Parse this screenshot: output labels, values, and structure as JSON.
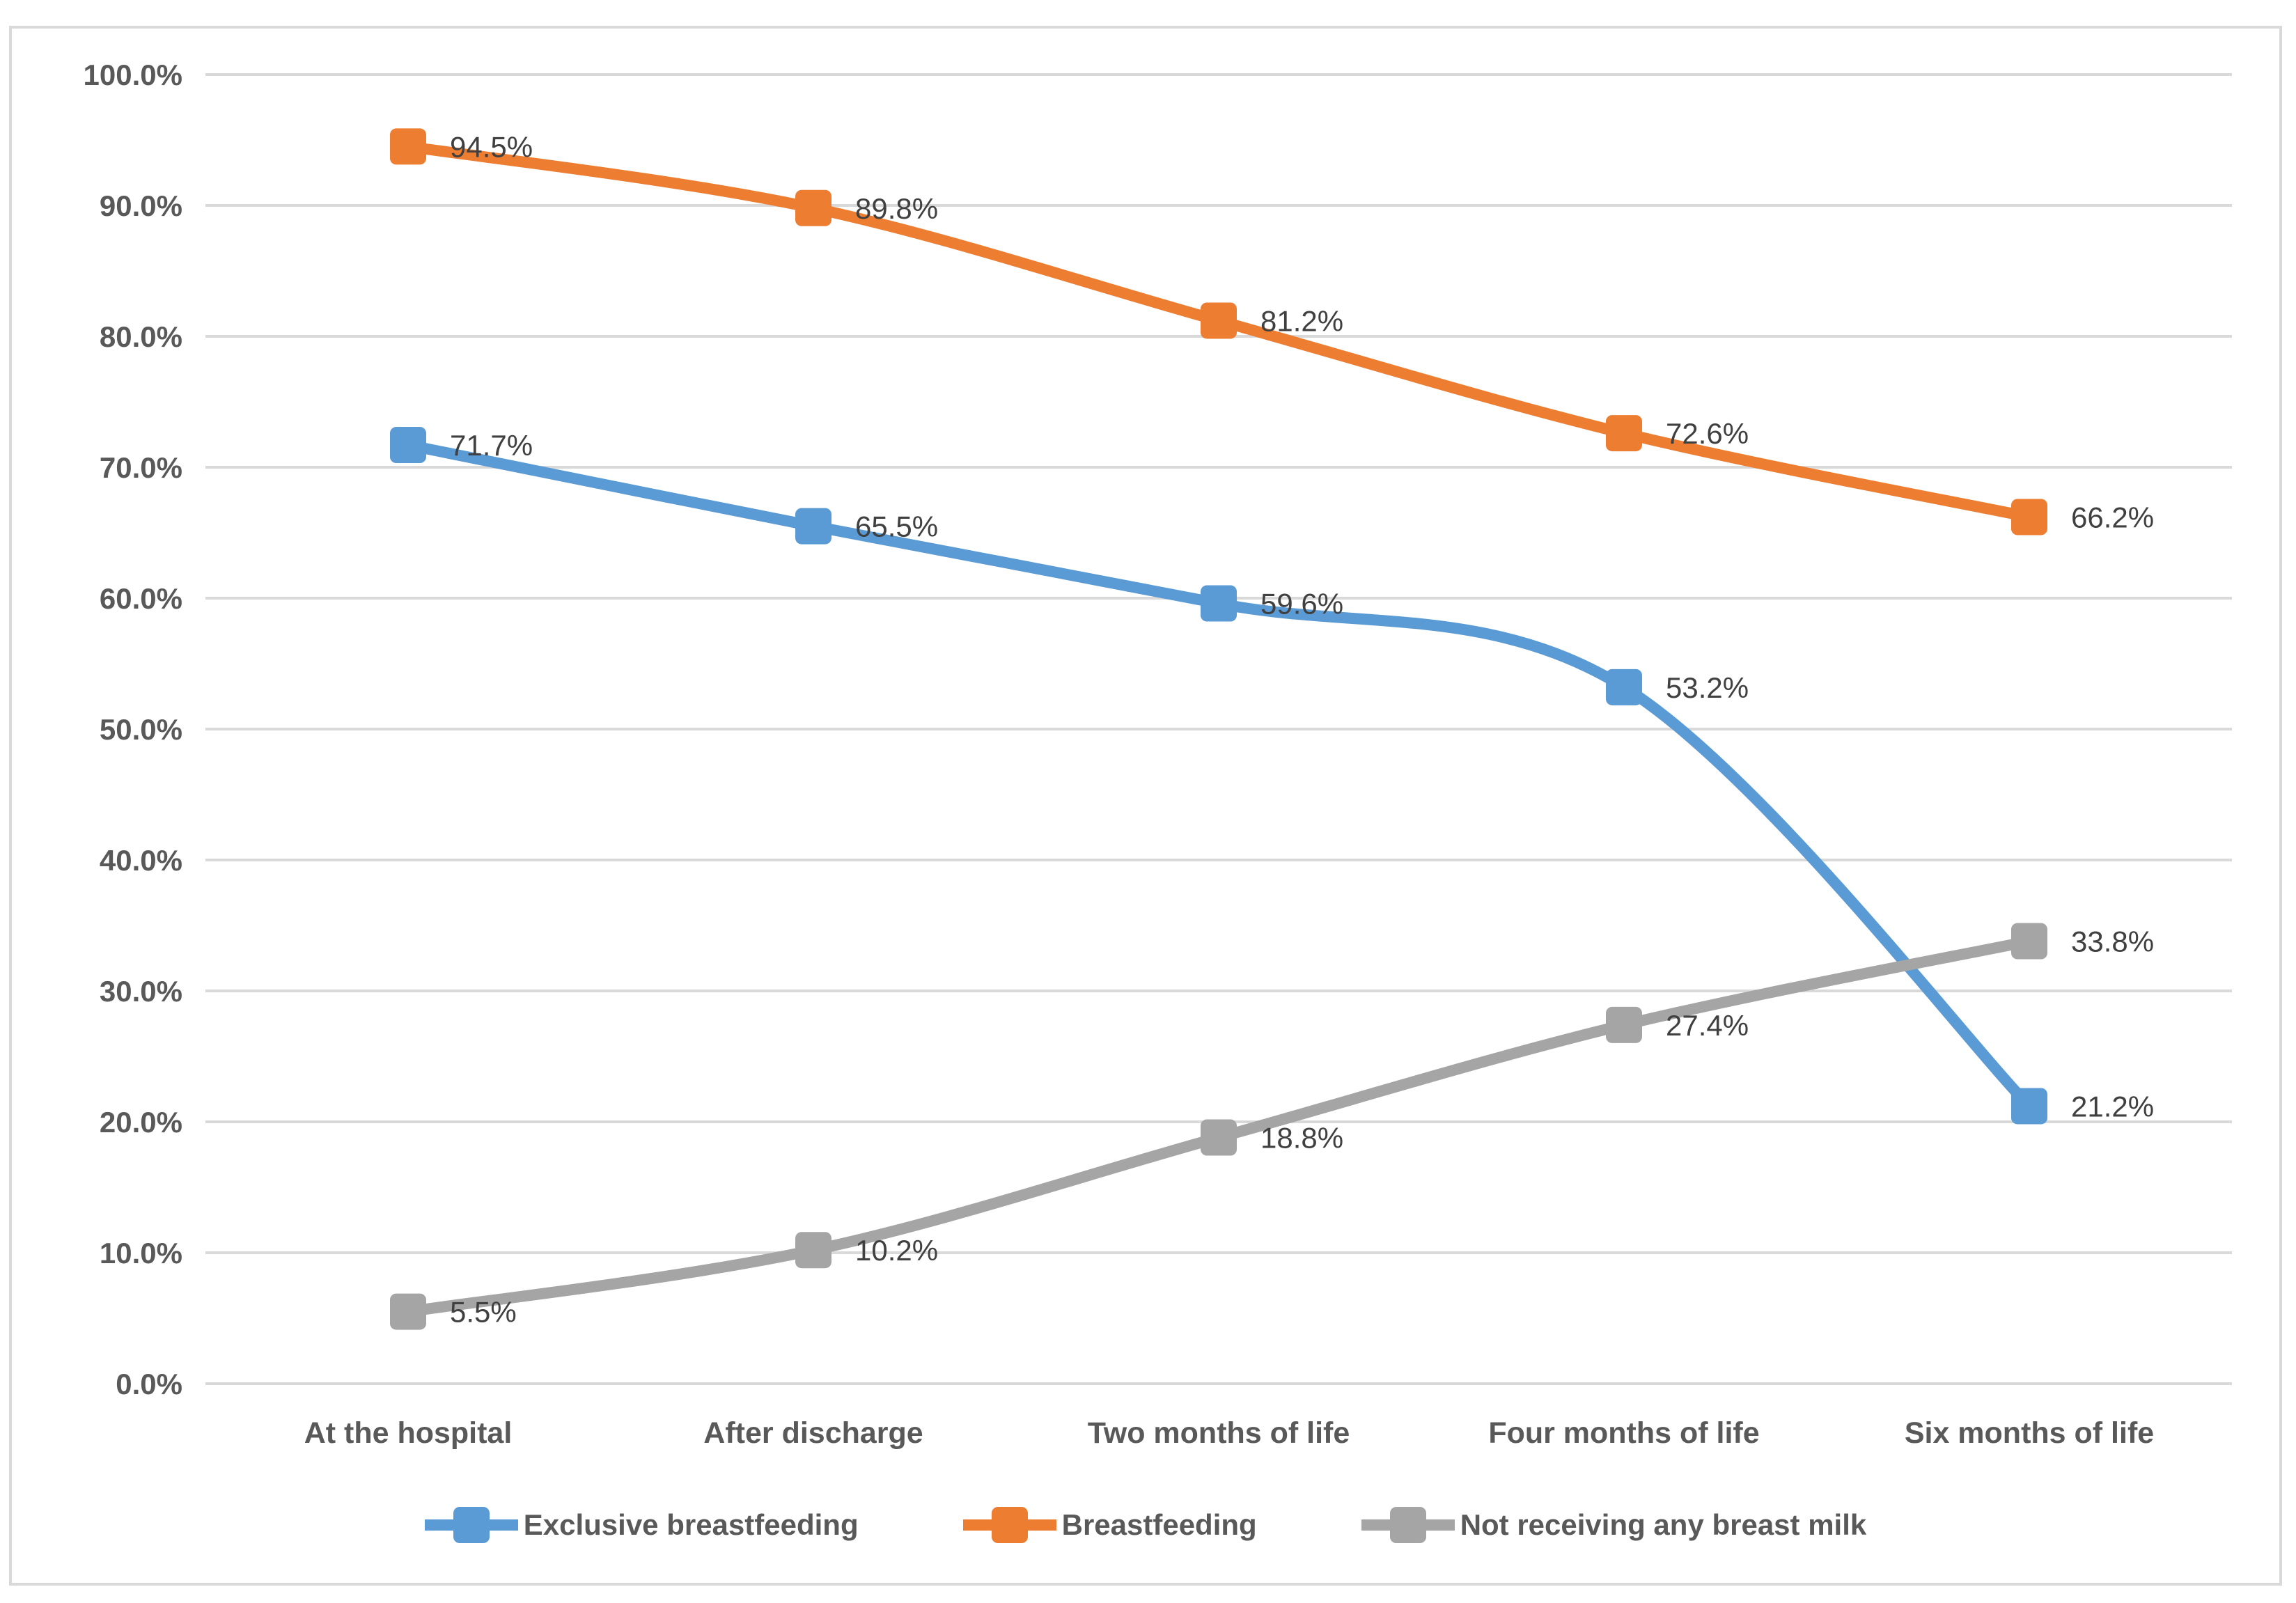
{
  "chart_data": {
    "type": "line",
    "title": "",
    "xlabel": "",
    "ylabel": "",
    "smooth": true,
    "grid": true,
    "legend_position": "bottom",
    "categories": [
      "At the hospital",
      "After discharge",
      "Two months of life",
      "Four months of life",
      "Six months of life"
    ],
    "series": [
      {
        "name": "Exclusive breastfeeding",
        "color": "#5B9BD5",
        "values": [
          71.7,
          65.5,
          59.6,
          53.2,
          21.2
        ],
        "data_labels": [
          "71.7%",
          "65.5%",
          "59.6%",
          "53.2%",
          "21.2%"
        ]
      },
      {
        "name": "Breastfeeding",
        "color": "#ED7D31",
        "values": [
          94.5,
          89.8,
          81.2,
          72.6,
          66.2
        ],
        "data_labels": [
          "94.5%",
          "89.8%",
          "81.2%",
          "72.6%",
          "66.2%"
        ]
      },
      {
        "name": "Not receiving any breast milk",
        "color": "#A5A5A5",
        "values": [
          5.5,
          10.2,
          18.8,
          27.4,
          33.8
        ],
        "data_labels": [
          "5.5%",
          "10.2%",
          "18.8%",
          "27.4%",
          "33.8%"
        ]
      }
    ],
    "y_axis": {
      "min": 0,
      "max": 100,
      "step": 10,
      "tick_labels": [
        "100.0%",
        "90.0%",
        "80.0%",
        "70.0%",
        "60.0%",
        "50.0%",
        "40.0%",
        "30.0%",
        "20.0%",
        "10.0%",
        "0.0%"
      ]
    }
  },
  "colors": {
    "gridline": "#D9D9D9",
    "frame_border": "#D9D9D9",
    "axis_text": "#595959",
    "data_label_text": "#404040",
    "background": "#FFFFFF"
  }
}
